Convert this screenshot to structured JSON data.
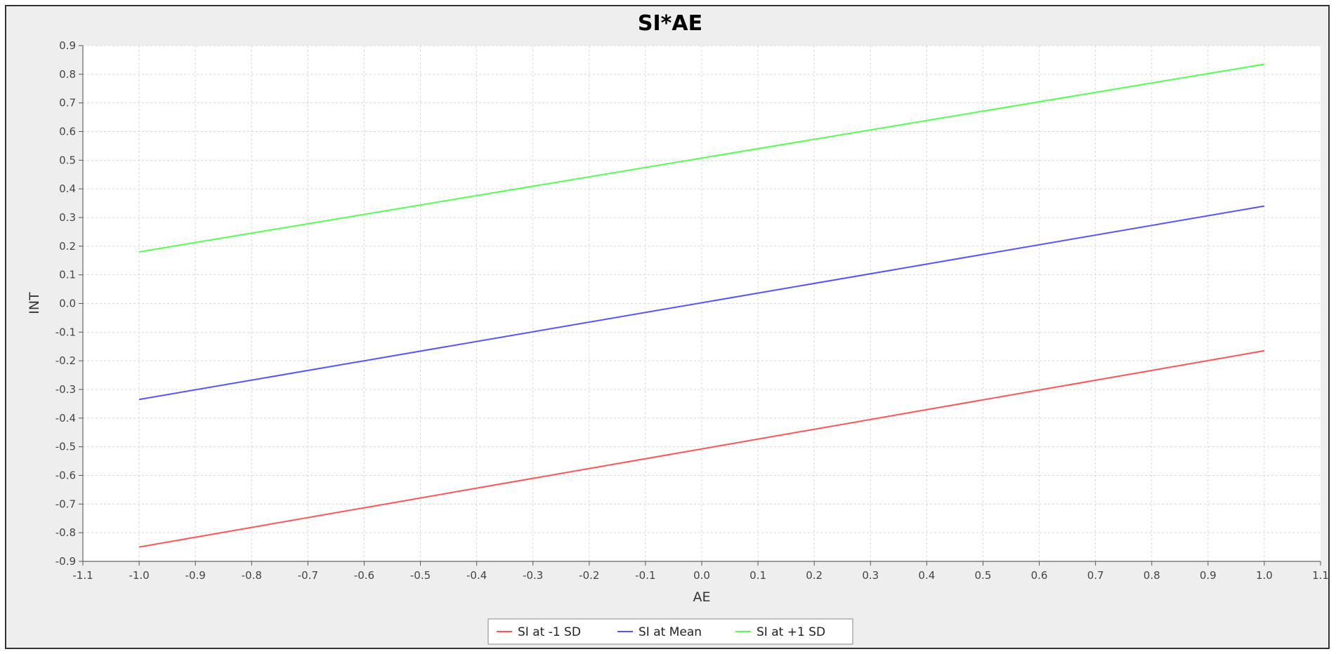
{
  "chart_data": {
    "type": "line",
    "title": "SI*AE",
    "xlabel": "AE",
    "ylabel": "INT",
    "xlim": [
      -1.1,
      1.1
    ],
    "ylim": [
      -0.9,
      0.9
    ],
    "x_ticks": [
      "-1.1",
      "-1.0",
      "-0.9",
      "-0.8",
      "-0.7",
      "-0.6",
      "-0.5",
      "-0.4",
      "-0.3",
      "-0.2",
      "-0.1",
      "0.0",
      "0.1",
      "0.2",
      "0.3",
      "0.4",
      "0.5",
      "0.6",
      "0.7",
      "0.8",
      "0.9",
      "1.0",
      "1.1"
    ],
    "y_ticks": [
      "0.9",
      "0.8",
      "0.7",
      "0.6",
      "0.5",
      "0.4",
      "0.3",
      "0.2",
      "0.1",
      "0.0",
      "-0.1",
      "-0.2",
      "-0.3",
      "-0.4",
      "-0.5",
      "-0.6",
      "-0.7",
      "-0.8",
      "-0.9"
    ],
    "grid": true,
    "legend_position": "bottom-center",
    "series": [
      {
        "name": "SI at -1 SD",
        "color": "#ff5555",
        "x": [
          -1.0,
          1.0
        ],
        "y": [
          -0.85,
          -0.165
        ]
      },
      {
        "name": "SI at Mean",
        "color": "#5555ff",
        "x": [
          -1.0,
          1.0
        ],
        "y": [
          -0.335,
          0.34
        ]
      },
      {
        "name": "SI at +1 SD",
        "color": "#55ff55",
        "x": [
          -1.0,
          1.0
        ],
        "y": [
          0.18,
          0.835
        ]
      }
    ]
  }
}
